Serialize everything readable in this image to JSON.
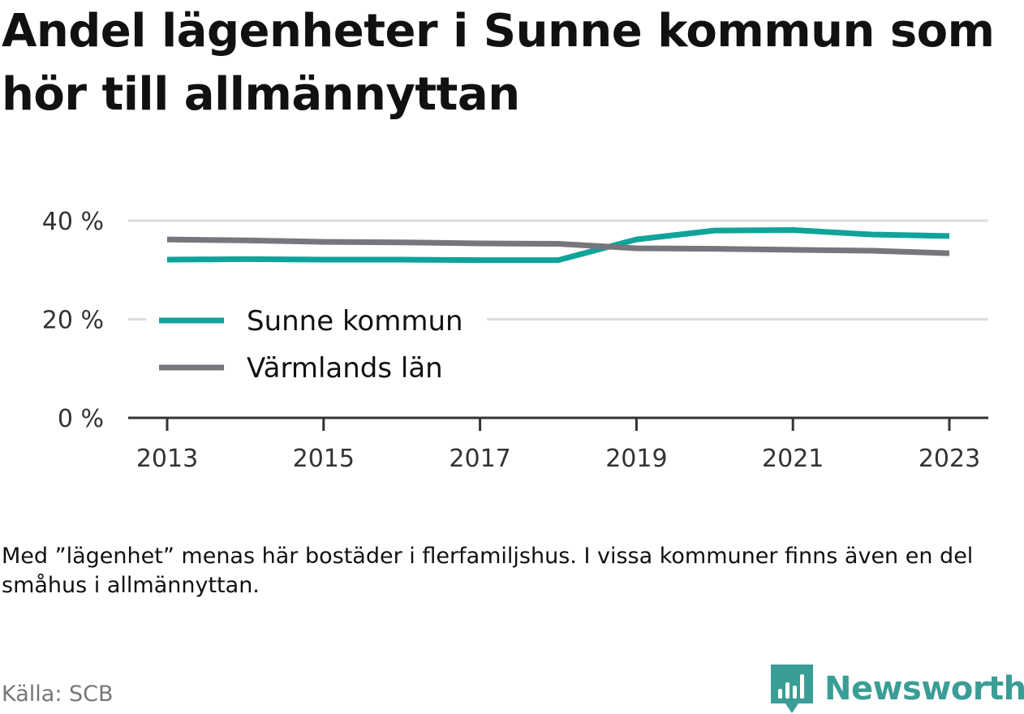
{
  "page": {
    "title": "Andel lägenheter i Sunne kommun som hör till allmännyttan",
    "note": "Med ”lägenhet” menas här bostäder i flerfamiljshus. I vissa kommuner finns även en del småhus i allmännyttan.",
    "source": "Källa: SCB",
    "brand": "Newsworthy",
    "brand_icon": "bar-chart-speech-bubble-icon"
  },
  "chart_data": {
    "type": "line",
    "title": "Andel lägenheter i Sunne kommun som hör till allmännyttan",
    "xlabel": "",
    "ylabel": "",
    "x": [
      2013,
      2014,
      2015,
      2016,
      2017,
      2018,
      2019,
      2020,
      2021,
      2022,
      2023
    ],
    "xticks": [
      "2013",
      "2015",
      "2017",
      "2019",
      "2021",
      "2023"
    ],
    "yticks": [
      "0 %",
      "20 %",
      "40 %"
    ],
    "ylim": [
      0,
      40
    ],
    "grid": true,
    "legend": "left-middle",
    "series": [
      {
        "name": "Sunne kommun",
        "color": "#10a39a",
        "values": [
          32.1,
          32.2,
          32.1,
          32.1,
          32.0,
          32.0,
          36.2,
          38.0,
          38.1,
          37.2,
          36.9
        ]
      },
      {
        "name": "Värmlands län",
        "color": "#77767c",
        "values": [
          36.2,
          36.0,
          35.7,
          35.6,
          35.4,
          35.3,
          34.4,
          34.3,
          34.1,
          33.9,
          33.4
        ]
      }
    ]
  }
}
